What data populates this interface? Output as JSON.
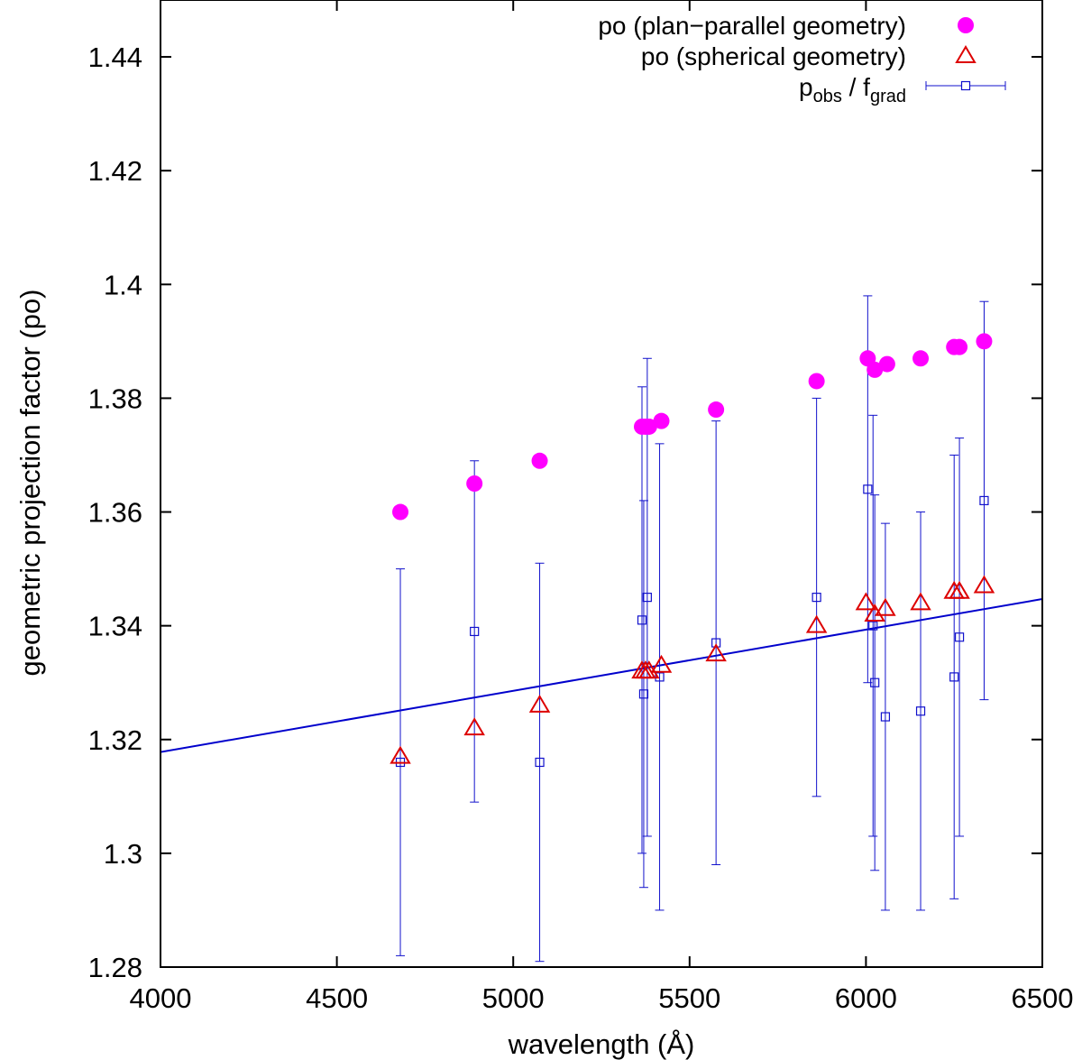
{
  "chart_data": {
    "type": "scatter",
    "title": "",
    "xlabel": "wavelength (Å)",
    "ylabel": "geometric projection factor (po)",
    "xlim": [
      4000,
      6500
    ],
    "ylim": [
      1.28,
      1.45
    ],
    "xticks": [
      4000,
      4500,
      5000,
      5500,
      6000,
      6500
    ],
    "yticks": [
      1.28,
      1.3,
      1.32,
      1.34,
      1.36,
      1.38,
      1.4,
      1.42,
      1.44
    ],
    "xtick_labels": [
      "4000",
      "4500",
      "5000",
      "5500",
      "6000",
      "6500"
    ],
    "ytick_labels": [
      "1.28",
      "1.3",
      "1.32",
      "1.34",
      "1.36",
      "1.38",
      "1.4",
      "1.42",
      "1.44"
    ],
    "grid": false,
    "legend_position": "top-right",
    "colors": {
      "plan": "#ff00ff",
      "spherical": "#dd0000",
      "obs": "#1111cc",
      "fit": "#0000cc"
    },
    "series": [
      {
        "name": "po (plan−parallel geometry)",
        "marker": "filled-circle",
        "x": [
          4680,
          4890,
          5075,
          5365,
          5375,
          5385,
          5420,
          5575,
          5860,
          6005,
          6025,
          6060,
          6155,
          6250,
          6265,
          6335
        ],
        "y": [
          1.36,
          1.365,
          1.369,
          1.375,
          1.375,
          1.375,
          1.376,
          1.378,
          1.383,
          1.387,
          1.385,
          1.386,
          1.387,
          1.389,
          1.389,
          1.39
        ]
      },
      {
        "name": "po (spherical geometry)",
        "marker": "open-triangle",
        "x": [
          4680,
          4890,
          5075,
          5365,
          5375,
          5385,
          5420,
          5575,
          5860,
          6000,
          6025,
          6055,
          6155,
          6250,
          6265,
          6335
        ],
        "y": [
          1.317,
          1.322,
          1.326,
          1.332,
          1.332,
          1.332,
          1.333,
          1.335,
          1.34,
          1.344,
          1.342,
          1.343,
          1.344,
          1.346,
          1.346,
          1.347
        ]
      },
      {
        "name": "p",
        "name_sub1": "obs",
        "name_mid": " / f",
        "name_sub2": "grad",
        "marker": "open-square-errorbar",
        "x": [
          4680,
          4890,
          5075,
          5365,
          5370,
          5380,
          5415,
          5575,
          5860,
          6005,
          6020,
          6025,
          6055,
          6155,
          6250,
          6265,
          6335
        ],
        "y": [
          1.316,
          1.339,
          1.316,
          1.341,
          1.328,
          1.345,
          1.331,
          1.337,
          1.345,
          1.364,
          1.34,
          1.33,
          1.324,
          1.325,
          1.331,
          1.338,
          1.362
        ],
        "yerr_low": [
          1.282,
          1.309,
          1.281,
          1.3,
          1.294,
          1.303,
          1.29,
          1.298,
          1.31,
          1.33,
          1.303,
          1.297,
          1.29,
          1.29,
          1.292,
          1.303,
          1.327
        ],
        "yerr_high": [
          1.35,
          1.369,
          1.351,
          1.382,
          1.362,
          1.387,
          1.372,
          1.376,
          1.38,
          1.398,
          1.377,
          1.363,
          1.358,
          1.36,
          1.37,
          1.373,
          1.397
        ]
      }
    ],
    "fit_line": {
      "x": [
        4000,
        6500
      ],
      "y": [
        1.3178,
        1.3447
      ]
    }
  }
}
